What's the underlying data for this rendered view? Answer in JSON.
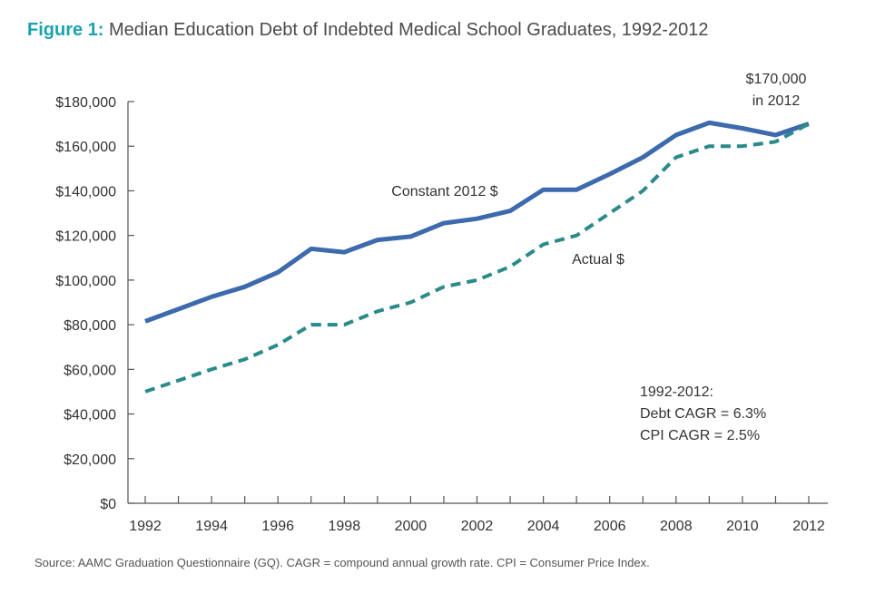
{
  "figure": {
    "label": "Figure 1:",
    "title": "Median Education Debt of Indebted Medical School Graduates, 1992-2012"
  },
  "chart_data": {
    "type": "line",
    "x": [
      1992,
      1993,
      1994,
      1995,
      1996,
      1997,
      1998,
      1999,
      2000,
      2001,
      2002,
      2003,
      2004,
      2005,
      2006,
      2007,
      2008,
      2009,
      2010,
      2011,
      2012
    ],
    "xticks": [
      "1992",
      "1994",
      "1996",
      "1998",
      "2000",
      "2002",
      "2004",
      "2006",
      "2008",
      "2010",
      "2012"
    ],
    "yticks": [
      "$0",
      "$20,000",
      "$40,000",
      "$60,000",
      "$80,000",
      "$100,000",
      "$120,000",
      "$140,000",
      "$160,000",
      "$180,000"
    ],
    "ylim": [
      0,
      180000
    ],
    "xlim": [
      1992,
      2012
    ],
    "grid": false,
    "series": [
      {
        "name": "Constant 2012 $",
        "style": "solid",
        "color": "#3d6aad",
        "values": [
          81500,
          87000,
          92500,
          97000,
          103500,
          114000,
          112500,
          118000,
          119500,
          125500,
          127500,
          131000,
          140500,
          140500,
          147500,
          155000,
          165000,
          170500,
          168000,
          165000,
          170000
        ]
      },
      {
        "name": "Actual $",
        "style": "dashed",
        "color": "#2b8a8a",
        "values": [
          50000,
          55000,
          60000,
          64500,
          71000,
          80000,
          80000,
          86000,
          90000,
          97000,
          100000,
          106000,
          116000,
          120000,
          130000,
          140000,
          155000,
          160000,
          160000,
          162000,
          170000
        ]
      }
    ],
    "annotations": {
      "end_value_line1": "$170,000",
      "end_value_line2": "in 2012",
      "summary_line1": "1992-2012:",
      "summary_line2": "Debt CAGR = 6.3%",
      "summary_line3": "CPI CAGR = 2.5%"
    }
  },
  "source": "Source: AAMC Graduation Questionnaire (GQ). CAGR = compound annual growth rate. CPI = Consumer Price Index."
}
